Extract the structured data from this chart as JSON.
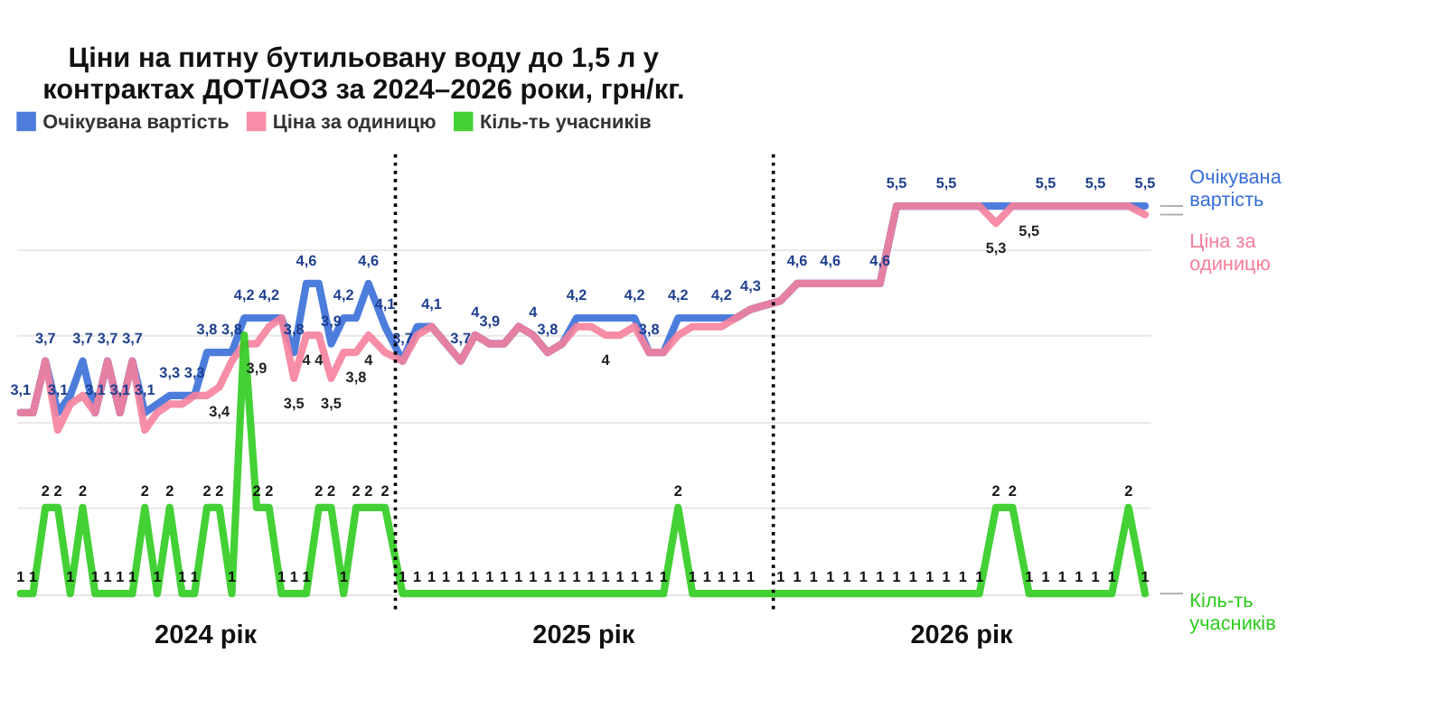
{
  "chart_data": {
    "type": "line",
    "title": [
      "Ціни на питну бутильовану воду до 1,5 л у",
      "контрактах ДОТ/АОЗ за 2024–2026 роки, грн/кг."
    ],
    "x": [
      "2024-01-05",
      "2024-01-17",
      "2024-01-29",
      "2024-02-10",
      "2024-02-22",
      "2024-03-05",
      "2024-03-17",
      "2024-03-29",
      "2024-04-10",
      "2024-04-22",
      "2024-05-04",
      "2024-05-16",
      "2024-05-28",
      "2024-06-09",
      "2024-06-21",
      "2024-07-03",
      "2024-07-15",
      "2024-07-27",
      "2024-08-08",
      "2024-08-20",
      "2024-09-01",
      "2024-09-13",
      "2024-09-25",
      "2024-10-07",
      "2024-10-19",
      "2024-10-31",
      "2024-11-12",
      "2024-11-24",
      "2024-12-06",
      "2024-12-22",
      "2025-01-08",
      "2025-01-22",
      "2025-02-05",
      "2025-02-19",
      "2025-03-05",
      "2025-03-19",
      "2025-04-02",
      "2025-04-16",
      "2025-04-30",
      "2025-05-14",
      "2025-05-28",
      "2025-06-11",
      "2025-06-25",
      "2025-07-09",
      "2025-07-23",
      "2025-08-06",
      "2025-08-20",
      "2025-09-03",
      "2025-09-17",
      "2025-10-01",
      "2025-10-15",
      "2025-10-29",
      "2025-11-12",
      "2025-11-26",
      "2025-12-10",
      "2026-01-08",
      "2026-01-24",
      "2026-02-09",
      "2026-02-25",
      "2026-03-13",
      "2026-03-29",
      "2026-04-14",
      "2026-04-30",
      "2026-05-16",
      "2026-06-01",
      "2026-06-17",
      "2026-07-03",
      "2026-07-19",
      "2026-08-04",
      "2026-08-20",
      "2026-09-05",
      "2026-09-21",
      "2026-10-07",
      "2026-10-23",
      "2026-11-08",
      "2026-11-24",
      "2026-12-10",
      "2026-12-26"
    ],
    "xlim": [
      "2024-01-01",
      "2026-12-31"
    ],
    "xticks": [
      {
        "value": "2024-07-01",
        "label": "2024 рік"
      },
      {
        "value": "2025-07-01",
        "label": "2025 рік"
      },
      {
        "value": "2026-07-01",
        "label": "2026 рік"
      }
    ],
    "ylim": [
      0.8,
      6.1
    ],
    "yticks": [
      {
        "value": 1,
        "label": null
      },
      {
        "value": 2,
        "label": null
      },
      {
        "value": 3,
        "label": null
      },
      {
        "value": 4,
        "label": null
      },
      {
        "value": 5,
        "label": null
      }
    ],
    "tick_labels": "x",
    "grid": "y",
    "legend": "top",
    "line_style": "solid",
    "ref_lines": [
      {
        "axis": "x",
        "value": "2025-01-01",
        "color": "#000000",
        "line_style": "dotted"
      },
      {
        "axis": "x",
        "value": "2026-01-01",
        "color": "#000000",
        "line_style": "dotted"
      }
    ],
    "series": [
      {
        "name": "Очікувана вартість",
        "color": "#3a6fd8",
        "values": [
          3.1,
          3.1,
          3.7,
          3.1,
          3.3,
          3.7,
          3.1,
          3.7,
          3.1,
          3.7,
          3.1,
          3.2,
          3.3,
          3.3,
          3.3,
          3.8,
          3.8,
          3.8,
          4.2,
          4.2,
          4.2,
          4.2,
          3.8,
          4.6,
          4.6,
          3.9,
          4.2,
          4.2,
          4.6,
          4.1,
          3.7,
          4.1,
          4.1,
          3.9,
          3.7,
          4,
          3.9,
          3.9,
          4.1,
          4,
          3.8,
          3.9,
          4.2,
          4.2,
          4.2,
          4.2,
          4.2,
          3.8,
          3.8,
          4.2,
          4.2,
          4.2,
          4.2,
          4.2,
          4.3,
          4.4,
          4.6,
          4.6,
          4.6,
          4.6,
          4.6,
          4.6,
          5.5,
          5.5,
          5.5,
          5.5,
          5.5,
          5.5,
          5.5,
          5.5,
          5.5,
          5.5,
          5.5,
          5.5,
          5.5,
          5.5,
          5.5,
          5.5
        ],
        "value_labels": [
          "3,1",
          null,
          "3,7",
          "3,1",
          null,
          "3,7",
          "3,1",
          "3,7",
          "3,1",
          "3,7",
          "3,1",
          null,
          "3,3",
          null,
          "3,3",
          "3,8",
          null,
          "3,8",
          "4,2",
          null,
          "4,2",
          null,
          "3,8",
          "4,6",
          null,
          "3,9",
          "4,2",
          null,
          "4,6",
          "4,1",
          "3,7",
          null,
          "4,1",
          null,
          "3,7",
          "4",
          "3,9",
          null,
          null,
          "4",
          "3,8",
          null,
          "4,2",
          null,
          null,
          null,
          "4,2",
          "3,8",
          null,
          "4,2",
          null,
          null,
          "4,2",
          null,
          "4,3",
          null,
          "4,6",
          null,
          "4,6",
          null,
          null,
          "4,6",
          "5,5",
          null,
          null,
          "5,5",
          null,
          null,
          null,
          null,
          null,
          "5,5",
          null,
          null,
          "5,5",
          null,
          null,
          "5,5"
        ]
      },
      {
        "name": "Ціна за одиницю",
        "color": "#f6819c",
        "values": [
          3.1,
          3.1,
          3.7,
          2.9,
          3.2,
          3.3,
          3.1,
          3.7,
          3.1,
          3.7,
          2.9,
          3.1,
          3.2,
          3.2,
          3.3,
          3.3,
          3.4,
          3.7,
          3.9,
          3.9,
          4.1,
          4.2,
          3.5,
          4,
          4,
          3.5,
          3.8,
          3.8,
          4,
          3.8,
          3.7,
          4,
          4.1,
          3.9,
          3.7,
          4,
          3.9,
          3.9,
          4.1,
          4,
          3.8,
          3.9,
          4.1,
          4.1,
          4,
          4,
          4.1,
          3.8,
          3.8,
          4,
          4.1,
          4.1,
          4.1,
          4.2,
          4.3,
          4.4,
          4.6,
          4.6,
          4.6,
          4.6,
          4.6,
          4.6,
          5.5,
          5.5,
          5.5,
          5.5,
          5.5,
          5.5,
          5.3,
          5.5,
          5.5,
          5.5,
          5.5,
          5.5,
          5.5,
          5.5,
          5.5,
          5.4
        ],
        "value_labels": [
          null,
          null,
          null,
          null,
          null,
          null,
          null,
          null,
          null,
          null,
          null,
          null,
          null,
          null,
          null,
          null,
          "3,4",
          null,
          null,
          "3,9",
          null,
          null,
          "3,5",
          "4",
          "4",
          "3,5",
          null,
          "3,8",
          "4",
          null,
          null,
          null,
          null,
          null,
          null,
          null,
          null,
          null,
          null,
          null,
          null,
          null,
          null,
          null,
          "4",
          null,
          null,
          null,
          null,
          null,
          null,
          null,
          null,
          null,
          null,
          null,
          null,
          null,
          null,
          null,
          null,
          null,
          null,
          null,
          null,
          null,
          null,
          null,
          "5,3",
          null,
          "5,5",
          null,
          null,
          null,
          null,
          null,
          null,
          null
        ]
      },
      {
        "name": "Кіль-ть  учасників",
        "color": "#2fcc1f",
        "values": [
          1,
          1,
          2,
          2,
          1,
          2,
          1,
          1,
          1,
          1,
          2,
          1,
          2,
          1,
          1,
          2,
          2,
          1,
          4,
          2,
          2,
          1,
          1,
          1,
          2,
          2,
          1,
          2,
          2,
          2,
          1,
          1,
          1,
          1,
          1,
          1,
          1,
          1,
          1,
          1,
          1,
          1,
          1,
          1,
          1,
          1,
          1,
          1,
          1,
          2,
          1,
          1,
          1,
          1,
          1,
          1,
          1,
          1,
          1,
          1,
          1,
          1,
          1,
          1,
          1,
          1,
          1,
          1,
          2,
          2,
          1,
          1,
          1,
          1,
          1,
          1,
          2,
          1
        ],
        "value_labels": [
          "1",
          "1",
          "2",
          "2",
          "1",
          "2",
          "1",
          "1",
          "1",
          "1",
          "2",
          "1",
          "2",
          "1",
          "1",
          "2",
          "2",
          "1",
          null,
          "2",
          "2",
          "1",
          "1",
          "1",
          "2",
          "2",
          "1",
          "2",
          "2",
          "2",
          "1",
          "1",
          "1",
          "1",
          "1",
          "1",
          "1",
          "1",
          "1",
          "1",
          "1",
          "1",
          "1",
          "1",
          "1",
          "1",
          "1",
          "1",
          "1",
          "2",
          "1",
          "1",
          "1",
          "1",
          "1",
          "1",
          "1",
          "1",
          "1",
          "1",
          "1",
          "1",
          "1",
          "1",
          "1",
          "1",
          "1",
          "1",
          "2",
          "2",
          "1",
          "1",
          "1",
          "1",
          "1",
          "1",
          "2",
          "1"
        ]
      }
    ]
  }
}
